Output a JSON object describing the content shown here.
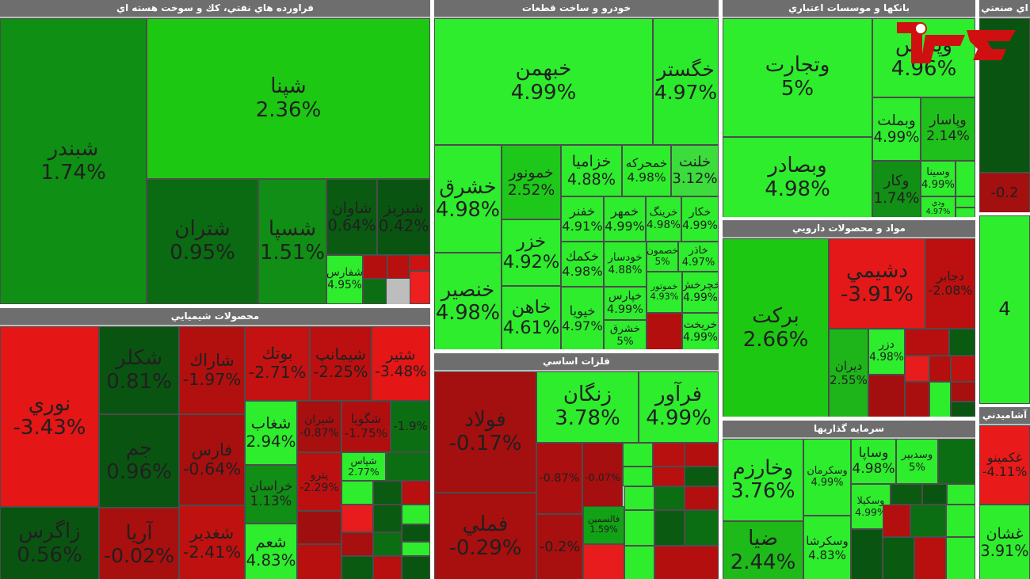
{
  "chart_data": {
    "type": "heatmap",
    "sectors": [
      {
        "id": "s1",
        "title": "فراورده هاي نفتي، كك و سوخت هسته اي",
        "tiles": [
          {
            "symbol": "شپنا",
            "value": "2.36%",
            "color": "#1dc812"
          },
          {
            "symbol": "شبندر",
            "value": "1.74%",
            "color": "#0f8f13"
          },
          {
            "symbol": "شتران",
            "value": "0.95%",
            "color": "#0b6b12"
          },
          {
            "symbol": "شسپا",
            "value": "1.51%",
            "color": "#118e15"
          },
          {
            "symbol": "شاوان",
            "value": "0.64%",
            "color": "#0a5a12"
          },
          {
            "symbol": "شبريز",
            "value": "0.42%",
            "color": "#0a5412"
          },
          {
            "symbol": "شفارس",
            "value": "4.95%",
            "color": "#2ded2d"
          },
          {
            "symbol": "",
            "value": "",
            "color": "#b30f0f"
          },
          {
            "symbol": "",
            "value": "",
            "color": "#b80f0f"
          },
          {
            "symbol": "",
            "value": "",
            "color": "#cc1212"
          },
          {
            "symbol": "",
            "value": "",
            "color": "#0c6e12"
          },
          {
            "symbol": "",
            "value": "",
            "color": "#ee1f1f"
          }
        ]
      },
      {
        "id": "s2",
        "title": "خودرو و ساخت قطعات",
        "tiles": [
          {
            "symbol": "خبهمن",
            "value": "4.99%",
            "color": "#2ded2d"
          },
          {
            "symbol": "خگستر",
            "value": "4.97%",
            "color": "#2be92b"
          },
          {
            "symbol": "خشرق",
            "value": "4.98%",
            "color": "#2ded2d"
          },
          {
            "symbol": "خمونور",
            "value": "2.52%",
            "color": "#1ec81a"
          },
          {
            "symbol": "خزاميا",
            "value": "4.88%",
            "color": "#2ded2d"
          },
          {
            "symbol": "خمحركه",
            "value": "4.98%",
            "color": "#2ded2d"
          },
          {
            "symbol": "خلنت",
            "value": "3.12%",
            "color": "#3bdc3b"
          },
          {
            "symbol": "خزر",
            "value": "4.92%",
            "color": "#2ded2d"
          },
          {
            "symbol": "خفنر",
            "value": "4.91%",
            "color": "#2ded2d"
          },
          {
            "symbol": "خمهر",
            "value": "4.99%",
            "color": "#2ded2d"
          },
          {
            "symbol": "خرينگ",
            "value": "4.98%",
            "color": "#2ded2d"
          },
          {
            "symbol": "خكار",
            "value": "4.99%",
            "color": "#2ded2d"
          },
          {
            "symbol": "خكمك",
            "value": "4.98%",
            "color": "#2ded2d"
          },
          {
            "symbol": "خودسار",
            "value": "4.88%",
            "color": "#2ded2d"
          },
          {
            "symbol": "خصمون",
            "value": "5%",
            "color": "#2ded2d"
          },
          {
            "symbol": "خاذر",
            "value": "4.97%",
            "color": "#2ded2d"
          },
          {
            "symbol": "خنصير",
            "value": "4.98%",
            "color": "#2ded2d"
          },
          {
            "symbol": "خاهن",
            "value": "4.61%",
            "color": "#2ded2d"
          },
          {
            "symbol": "خپويا",
            "value": "4.97%",
            "color": "#2ded2d"
          },
          {
            "symbol": "خپارس",
            "value": "4.99%",
            "color": "#2ded2d"
          },
          {
            "symbol": "خموتور",
            "value": "4.93%",
            "color": "#2ded2d"
          },
          {
            "symbol": "خچرخش",
            "value": "4.99%",
            "color": "#2ded2d"
          },
          {
            "symbol": "خشرق",
            "value": "5%",
            "color": "#2ded2d"
          },
          {
            "symbol": "",
            "value": "",
            "color": "#b40f0f"
          },
          {
            "symbol": "خريخت",
            "value": "4.99%",
            "color": "#2ded2d"
          }
        ]
      },
      {
        "id": "s3",
        "title": "بانكها و موسسات اعتباري",
        "tiles": [
          {
            "symbol": "وتجارت",
            "value": "5%",
            "color": "#2ded2d"
          },
          {
            "symbol": "وپارس",
            "value": "4.96%",
            "color": "#2ded2d"
          },
          {
            "symbol": "وبصادر",
            "value": "4.98%",
            "color": "#2ded2d"
          },
          {
            "symbol": "وبملت",
            "value": "4.99%",
            "color": "#2ded2d"
          },
          {
            "symbol": "وپاسار",
            "value": "2.14%",
            "color": "#1fbf1c"
          },
          {
            "symbol": "وكار",
            "value": "1.74%",
            "color": "#128f15"
          },
          {
            "symbol": "وسينا",
            "value": "4.99%",
            "color": "#2ded2d"
          },
          {
            "symbol": "",
            "value": "",
            "color": "#2ded2d"
          },
          {
            "symbol": "ودي",
            "value": "4.97%",
            "color": "#2ded2d"
          },
          {
            "symbol": "",
            "value": "",
            "color": "#2ded2d"
          },
          {
            "symbol": "",
            "value": "",
            "color": "#2ded2d"
          }
        ]
      },
      {
        "id": "s4",
        "title": "اي صنعتي",
        "tiles": [
          {
            "symbol": "",
            "value": "",
            "color": "#0a5412"
          },
          {
            "symbol": "",
            "value": "-0.2",
            "color": "#a40f0f"
          },
          {
            "symbol": "",
            "value": "",
            "color": "#0c6e12"
          }
        ]
      },
      {
        "id": "s5",
        "title": "مواد و محصولات دارويي",
        "tiles": [
          {
            "symbol": "بركت",
            "value": "2.66%",
            "color": "#1dc812"
          },
          {
            "symbol": "دشيمي",
            "value": "-3.91%",
            "color": "#e41818"
          },
          {
            "symbol": "دجابر",
            "value": "-2.08%",
            "color": "#bc1010"
          },
          {
            "symbol": "ديران",
            "value": "2.55%",
            "color": "#1db51a"
          },
          {
            "symbol": "دزر",
            "value": "4.98%",
            "color": "#2ded2d"
          },
          {
            "symbol": "",
            "value": "",
            "color": "#b70f0f"
          },
          {
            "symbol": "",
            "value": "",
            "color": "#0a5a12"
          },
          {
            "symbol": "",
            "value": "",
            "color": "#e81c1c"
          },
          {
            "symbol": "",
            "value": "",
            "color": "#b40f0f"
          },
          {
            "symbol": "",
            "value": "",
            "color": "#c01111"
          },
          {
            "symbol": "",
            "value": "",
            "color": "#a30f0f"
          },
          {
            "symbol": "",
            "value": "",
            "color": "#aa0f0f"
          },
          {
            "symbol": "",
            "value": "",
            "color": "#2ded2d"
          },
          {
            "symbol": "",
            "value": "",
            "color": "#a80f0f"
          },
          {
            "symbol": "",
            "value": "",
            "color": "#0a5412"
          }
        ]
      },
      {
        "id": "s6",
        "title": "",
        "tiles": [
          {
            "symbol": "",
            "value": "4",
            "color": "#2ded2d"
          }
        ]
      },
      {
        "id": "s7",
        "title": "محصولات شيميايي",
        "tiles": [
          {
            "symbol": "نوري",
            "value": "-3.43%",
            "color": "#e41616"
          },
          {
            "symbol": "شكلر",
            "value": "0.81%",
            "color": "#0a5412"
          },
          {
            "symbol": "شاراك",
            "value": "-1.97%",
            "color": "#b20f0f"
          },
          {
            "symbol": "بوتك",
            "value": "-2.71%",
            "color": "#c41212"
          },
          {
            "symbol": "شيمانپ",
            "value": "-2.25%",
            "color": "#bc1010"
          },
          {
            "symbol": "شتير",
            "value": "-3.48%",
            "color": "#e41616"
          },
          {
            "symbol": "جم",
            "value": "0.96%",
            "color": "#0a5412"
          },
          {
            "symbol": "فارس",
            "value": "-0.64%",
            "color": "#a80f0f"
          },
          {
            "symbol": "شغاب",
            "value": "2.94%",
            "color": "#2ded2d"
          },
          {
            "symbol": "شيران",
            "value": "-0.87%",
            "color": "#a80f0f"
          },
          {
            "symbol": "شگويا",
            "value": "-1.75%",
            "color": "#b10f0f"
          },
          {
            "symbol": "",
            "value": "-1.9%",
            "color": "#0c6e12"
          },
          {
            "symbol": "خراسان",
            "value": "1.13%",
            "color": "#118e15"
          },
          {
            "symbol": "پترو",
            "value": "-2.29%",
            "color": "#bc1010"
          },
          {
            "symbol": "زاگرس",
            "value": "0.56%",
            "color": "#0a5412"
          },
          {
            "symbol": "آريا",
            "value": "-0.02%",
            "color": "#a80f0f"
          },
          {
            "symbol": "شغدير",
            "value": "-2.41%",
            "color": "#c01111"
          },
          {
            "symbol": "شعم",
            "value": "4.83%",
            "color": "#2ded2d"
          },
          {
            "symbol": "",
            "value": "",
            "color": "#a00f0f"
          },
          {
            "symbol": "",
            "value": "",
            "color": "#b80f0f"
          },
          {
            "symbol": "شپاس",
            "value": "2.77%",
            "color": "#2ded2d"
          },
          {
            "symbol": "",
            "value": "",
            "color": "#0c6e12"
          },
          {
            "symbol": "",
            "value": "",
            "color": "#2ded2d"
          },
          {
            "symbol": "",
            "value": "",
            "color": "#0a5a12"
          },
          {
            "symbol": "",
            "value": "",
            "color": "#b80f0f"
          },
          {
            "symbol": "",
            "value": "",
            "color": "#e81c1c"
          },
          {
            "symbol": "",
            "value": "",
            "color": "#0a5a12"
          },
          {
            "symbol": "",
            "value": "",
            "color": "#2ded2d"
          },
          {
            "symbol": "",
            "value": "",
            "color": "#0a5412"
          },
          {
            "symbol": "",
            "value": "",
            "color": "#a80f0f"
          },
          {
            "symbol": "",
            "value": "",
            "color": "#0c6e12"
          },
          {
            "symbol": "",
            "value": "",
            "color": "#2ded2d"
          },
          {
            "symbol": "",
            "value": "",
            "color": "#0a5a12"
          },
          {
            "symbol": "",
            "value": "",
            "color": "#b80f0f"
          },
          {
            "symbol": "",
            "value": "",
            "color": "#0a5412"
          }
        ]
      },
      {
        "id": "s8",
        "title": "فلزات اساسي",
        "tiles": [
          {
            "symbol": "فولاد",
            "value": "-0.17%",
            "color": "#a40f0f"
          },
          {
            "symbol": "زنگان",
            "value": "3.78%",
            "color": "#2ded2d"
          },
          {
            "symbol": "فرآور",
            "value": "4.99%",
            "color": "#2ded2d"
          },
          {
            "symbol": "فملي",
            "value": "-0.29%",
            "color": "#a80f0f"
          },
          {
            "symbol": "",
            "value": "-0.87%",
            "color": "#ac0f0f"
          },
          {
            "symbol": "",
            "value": "-0.07%",
            "color": "#a50f0f"
          },
          {
            "symbol": "",
            "value": "",
            "color": "#2ded2d"
          },
          {
            "symbol": "",
            "value": "",
            "color": "#b80f0f"
          },
          {
            "symbol": "",
            "value": "",
            "color": "#b40f0f"
          },
          {
            "symbol": "",
            "value": "",
            "color": "#2ded2d"
          },
          {
            "symbol": "",
            "value": "",
            "color": "#b80f0f"
          },
          {
            "symbol": "",
            "value": "",
            "color": "#0a5a12"
          },
          {
            "symbol": "",
            "value": "-0.2%",
            "color": "#a80f0f"
          },
          {
            "symbol": "فالسمين",
            "value": "1.59%",
            "color": "#11a215"
          },
          {
            "symbol": "",
            "value": "",
            "color": "#2ded2d"
          },
          {
            "symbol": "",
            "value": "",
            "color": "#0c6e12"
          },
          {
            "symbol": "",
            "value": "",
            "color": "#b40f0f"
          },
          {
            "symbol": "",
            "value": "",
            "color": "#e81c1c"
          },
          {
            "symbol": "",
            "value": "",
            "color": "#2ded2d"
          },
          {
            "symbol": "",
            "value": "",
            "color": "#0a5a12"
          },
          {
            "symbol": "",
            "value": "",
            "color": "#0c6e12"
          },
          {
            "symbol": "",
            "value": "",
            "color": "#2ded2d"
          },
          {
            "symbol": "",
            "value": "",
            "color": "#b40f0f"
          }
        ]
      },
      {
        "id": "s9",
        "title": "سرمايه گذاريها",
        "tiles": [
          {
            "symbol": "وخارزم",
            "value": "3.76%",
            "color": "#2ded2d"
          },
          {
            "symbol": "وسكرمان",
            "value": "4.99%",
            "color": "#2ded2d"
          },
          {
            "symbol": "وساپا",
            "value": "4.98%",
            "color": "#2ded2d"
          },
          {
            "symbol": "وسدبير",
            "value": "5%",
            "color": "#2ded2d"
          },
          {
            "symbol": "",
            "value": "",
            "color": "#0c6e12"
          },
          {
            "symbol": "وسكيلا",
            "value": "4.99%",
            "color": "#2ded2d"
          },
          {
            "symbol": "",
            "value": "",
            "color": "#0a5a12"
          },
          {
            "symbol": "",
            "value": "",
            "color": "#0a5412"
          },
          {
            "symbol": "",
            "value": "",
            "color": "#2ded2d"
          },
          {
            "symbol": "ضيا",
            "value": "2.44%",
            "color": "#1dba19"
          },
          {
            "symbol": "وسكرشا",
            "value": "4.83%",
            "color": "#2ded2d"
          },
          {
            "symbol": "",
            "value": "",
            "color": "#0a5412"
          },
          {
            "symbol": "",
            "value": "",
            "color": "#b40f0f"
          },
          {
            "symbol": "",
            "value": "",
            "color": "#0c6e12"
          },
          {
            "symbol": "",
            "value": "",
            "color": "#2ded2d"
          },
          {
            "symbol": "",
            "value": "",
            "color": "#0a5a12"
          },
          {
            "symbol": "",
            "value": "",
            "color": "#b80f0f"
          },
          {
            "symbol": "",
            "value": "",
            "color": "#2ded2d"
          }
        ]
      },
      {
        "id": "s10",
        "title": "آشاميدني",
        "tiles": [
          {
            "symbol": "غكمينو",
            "value": "-4.11%",
            "color": "#e81a1a"
          },
          {
            "symbol": "غشان",
            "value": "3.91%",
            "color": "#2ded2d"
          }
        ]
      }
    ]
  },
  "logo": {
    "alt_text": "rokna"
  }
}
